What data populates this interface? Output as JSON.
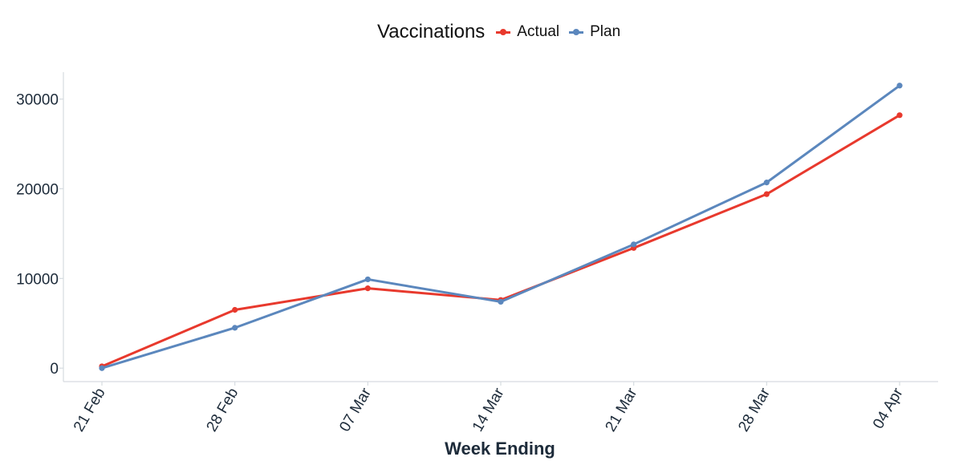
{
  "chart_data": {
    "type": "line",
    "title": "",
    "xlabel": "Week Ending",
    "ylabel": "",
    "legend_title": "Vaccinations",
    "legend_position": "top",
    "grid": false,
    "categories": [
      "21 Feb",
      "28 Feb",
      "07 Mar",
      "14 Mar",
      "21 Mar",
      "28 Mar",
      "04 Apr"
    ],
    "yticks": [
      0,
      10000,
      20000,
      30000
    ],
    "ylim": [
      -1500,
      33000
    ],
    "series": [
      {
        "name": "Actual",
        "color": "#e8392d",
        "values": [
          200,
          6500,
          8900,
          7600,
          13400,
          19400,
          28200
        ]
      },
      {
        "name": "Plan",
        "color": "#5b87bd",
        "values": [
          0,
          4500,
          9900,
          7400,
          13800,
          20700,
          31500
        ]
      }
    ]
  }
}
